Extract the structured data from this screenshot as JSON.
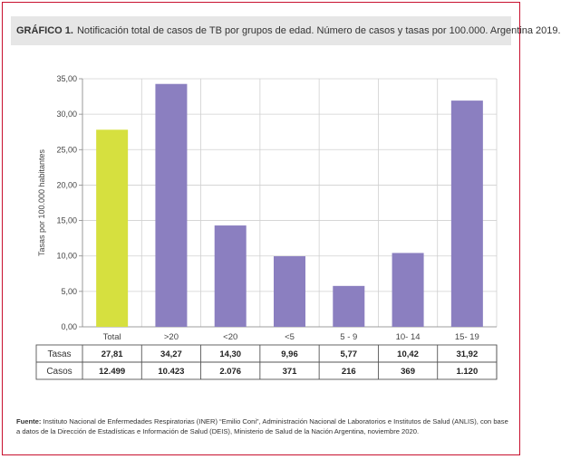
{
  "header": {
    "label": "GRÁFICO 1.",
    "title": "Notificación total de casos de TB por grupos de edad. Número de casos y tasas por 100.000. Argentina 2019."
  },
  "chart_data": {
    "type": "bar",
    "categories": [
      "Total",
      ">20",
      "<20",
      "<5",
      "5 - 9",
      "10- 14",
      "15- 19"
    ],
    "series": [
      {
        "name": "Tasas",
        "values": [
          27.81,
          34.27,
          14.3,
          9.96,
          5.77,
          10.42,
          31.92
        ]
      }
    ],
    "ylabel": "Tasas por 100.000 habitantes",
    "ylim": [
      0,
      35
    ],
    "yticks": [
      "0,00",
      "5,00",
      "10,00",
      "15,00",
      "20,00",
      "25,00",
      "30,00",
      "35,00"
    ],
    "grid": true,
    "bar_colors": [
      "#d6e03f",
      "#8b7fc0",
      "#8b7fc0",
      "#8b7fc0",
      "#8b7fc0",
      "#8b7fc0",
      "#8b7fc0"
    ],
    "table": {
      "rows": [
        {
          "label": "Tasas",
          "values": [
            "27,81",
            "34,27",
            "14,30",
            "9,96",
            "5,77",
            "10,42",
            "31,92"
          ]
        },
        {
          "label": "Casos",
          "values": [
            "12.499",
            "10.423",
            "2.076",
            "371",
            "216",
            "369",
            "1.120"
          ]
        }
      ]
    }
  },
  "source": {
    "label": "Fuente:",
    "text": "Instituto Nacional de Enfermedades Respiratorias (INER) “Emilio Coni”, Administración Nacional de Laboratorios e Institutos de Salud (ANLIS), con base a datos de la Dirección de Estadísticas e Información de Salud (DEIS), Ministerio de Salud de la Nación Argentina, noviembre 2020."
  }
}
